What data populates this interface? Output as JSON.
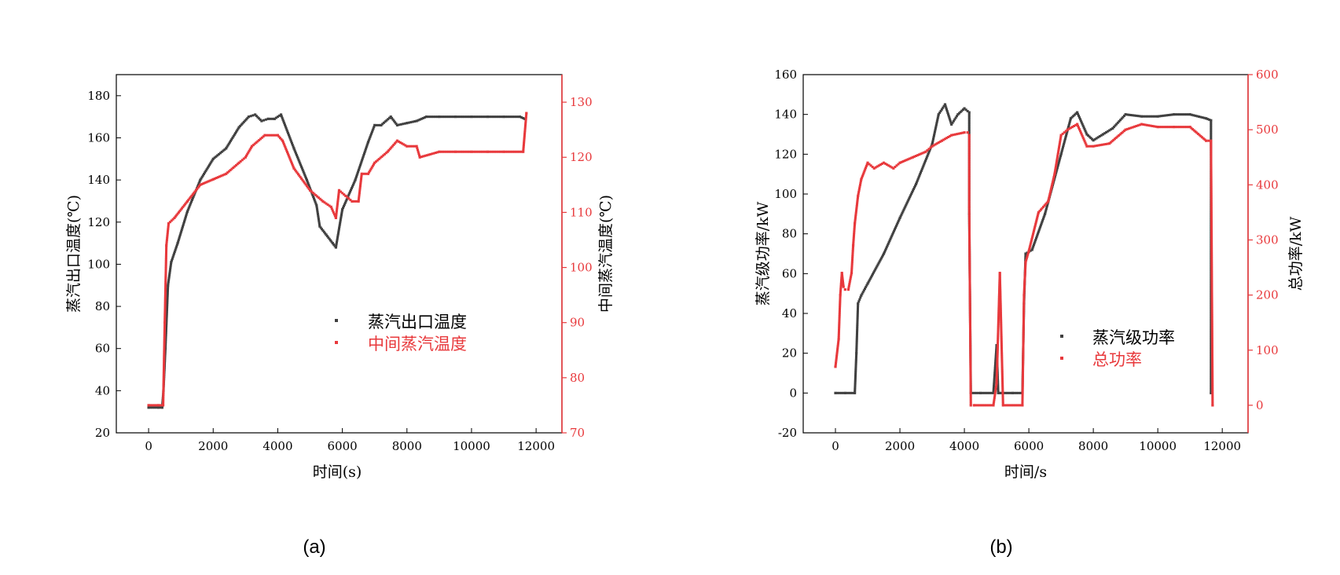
{
  "colors": {
    "series_dark": "#404040",
    "series_red": "#e8393c",
    "axis": "#000000"
  },
  "chart_data": [
    {
      "id": "a",
      "type": "scatter",
      "caption": "(a)",
      "xlabel": "时间(s)",
      "ylabel_left": "蒸汽出口温度(℃)",
      "ylabel_right": "中间蒸汽温度(℃)",
      "xlim": [
        -1000,
        12800
      ],
      "ylim_left": [
        20,
        190
      ],
      "ylim_right": [
        70,
        135
      ],
      "x_ticks": [
        0,
        2000,
        4000,
        6000,
        8000,
        10000,
        12000
      ],
      "x_tick_labels": [
        "0",
        "2000",
        "4000",
        "6000",
        "8000",
        "10000",
        "12000"
      ],
      "y_left_ticks": [
        20,
        40,
        60,
        80,
        100,
        120,
        140,
        160,
        180
      ],
      "y_left_tick_labels": [
        "20",
        "40",
        "60",
        "80",
        "100",
        "120",
        "140",
        "160",
        "180"
      ],
      "y_right_ticks": [
        70,
        80,
        90,
        100,
        110,
        120,
        130
      ],
      "y_right_tick_labels": [
        "70",
        "80",
        "90",
        "100",
        "110",
        "120",
        "130"
      ],
      "legend_position": "center-right",
      "series": [
        {
          "name": "蒸汽出口温度",
          "axis": "left",
          "color_key": "series_dark",
          "x": [
            0,
            300,
            420,
            460,
            520,
            600,
            700,
            900,
            1200,
            1600,
            2000,
            2400,
            2800,
            3100,
            3300,
            3500,
            3700,
            3900,
            4100,
            4500,
            4900,
            5200,
            5300,
            5500,
            5700,
            5800,
            6000,
            6400,
            6800,
            7000,
            7200,
            7500,
            7700,
            8000,
            8300,
            8600,
            9000,
            9500,
            10000,
            10500,
            11000,
            11500,
            11650
          ],
          "y": [
            32,
            32,
            32,
            40,
            60,
            90,
            101,
            110,
            125,
            140,
            150,
            155,
            165,
            170,
            171,
            168,
            169,
            169,
            171,
            155,
            140,
            128,
            118,
            114,
            110,
            108,
            126,
            140,
            158,
            166,
            166,
            170,
            166,
            167,
            168,
            170,
            170,
            170,
            170,
            170,
            170,
            170,
            169
          ]
        },
        {
          "name": "中间蒸汽温度",
          "axis": "right",
          "color_key": "series_red",
          "x": [
            0,
            300,
            450,
            500,
            550,
            620,
            800,
            1200,
            1600,
            2000,
            2400,
            2800,
            3000,
            3200,
            3600,
            4000,
            4150,
            4500,
            5000,
            5400,
            5650,
            5800,
            5900,
            6100,
            6300,
            6500,
            6600,
            6800,
            7000,
            7400,
            7700,
            8000,
            8300,
            8400,
            9000,
            9500,
            10000,
            10500,
            11000,
            11600,
            11700
          ],
          "y": [
            75,
            75,
            75,
            90,
            104,
            108,
            109,
            112,
            115,
            116,
            117,
            119,
            120,
            122,
            124,
            124,
            123,
            118,
            114,
            112,
            111,
            109,
            114,
            113,
            112,
            112,
            117,
            117,
            119,
            121,
            123,
            122,
            122,
            120,
            121,
            121,
            121,
            121,
            121,
            121,
            128
          ]
        }
      ]
    },
    {
      "id": "b",
      "type": "scatter",
      "caption": "(b)",
      "xlabel": "时间/s",
      "ylabel_left": "蒸汽级功率/kW",
      "ylabel_right": "总功率/kW",
      "xlim": [
        -1000,
        12800
      ],
      "ylim_left": [
        -20,
        160
      ],
      "ylim_right": [
        -50,
        600
      ],
      "x_ticks": [
        0,
        2000,
        4000,
        6000,
        8000,
        10000,
        12000
      ],
      "x_tick_labels": [
        "0",
        "2000",
        "4000",
        "6000",
        "8000",
        "10000",
        "12000"
      ],
      "y_left_ticks": [
        -20,
        0,
        20,
        40,
        60,
        80,
        100,
        120,
        140,
        160
      ],
      "y_left_tick_labels": [
        "-20",
        "0",
        "20",
        "40",
        "60",
        "80",
        "100",
        "120",
        "140",
        "160"
      ],
      "y_right_ticks": [
        0,
        100,
        200,
        300,
        400,
        500,
        600
      ],
      "y_right_tick_labels": [
        "0",
        "100",
        "200",
        "300",
        "400",
        "500",
        "600"
      ],
      "legend_position": "center-right",
      "series": [
        {
          "name": "蒸汽级功率",
          "axis": "left",
          "color_key": "series_dark",
          "x": [
            0,
            300,
            600,
            650,
            700,
            800,
            1000,
            1500,
            2000,
            2500,
            3000,
            3200,
            3400,
            3600,
            3800,
            4000,
            4150,
            4150,
            4200,
            4500,
            4900,
            5000,
            5050,
            5100,
            5500,
            5800,
            5850,
            5900,
            6100,
            6500,
            7000,
            7300,
            7500,
            7800,
            8000,
            8300,
            8600,
            9000,
            9500,
            10000,
            10500,
            11000,
            11500,
            11650,
            11650
          ],
          "y": [
            0,
            0,
            0,
            20,
            45,
            49,
            55,
            70,
            88,
            105,
            125,
            140,
            145,
            135,
            140,
            143,
            141,
            90,
            0,
            0,
            0,
            24,
            0,
            0,
            0,
            0,
            45,
            70,
            72,
            90,
            120,
            138,
            141,
            130,
            127,
            130,
            133,
            140,
            139,
            139,
            140,
            140,
            138,
            137,
            0
          ]
        },
        {
          "name": "总功率",
          "axis": "right",
          "color_key": "series_red",
          "x": [
            0,
            100,
            150,
            200,
            250,
            300,
            400,
            500,
            550,
            600,
            700,
            800,
            1000,
            1200,
            1500,
            1800,
            2000,
            2400,
            2800,
            3000,
            3300,
            3600,
            4000,
            4100,
            4150,
            4150,
            4200,
            4300,
            4900,
            5000,
            5100,
            5200,
            5800,
            5850,
            5900,
            6000,
            6300,
            6600,
            6800,
            7000,
            7200,
            7500,
            7800,
            8000,
            8500,
            9000,
            9500,
            10000,
            10500,
            11000,
            11500,
            11650,
            11700
          ],
          "y": [
            70,
            120,
            200,
            240,
            215,
            210,
            210,
            240,
            290,
            330,
            380,
            410,
            440,
            430,
            440,
            430,
            440,
            450,
            460,
            470,
            480,
            490,
            495,
            495,
            490,
            360,
            0,
            0,
            0,
            40,
            240,
            0,
            0,
            200,
            260,
            280,
            350,
            370,
            420,
            490,
            500,
            510,
            470,
            470,
            475,
            500,
            510,
            505,
            505,
            505,
            480,
            480,
            0
          ]
        }
      ]
    }
  ]
}
